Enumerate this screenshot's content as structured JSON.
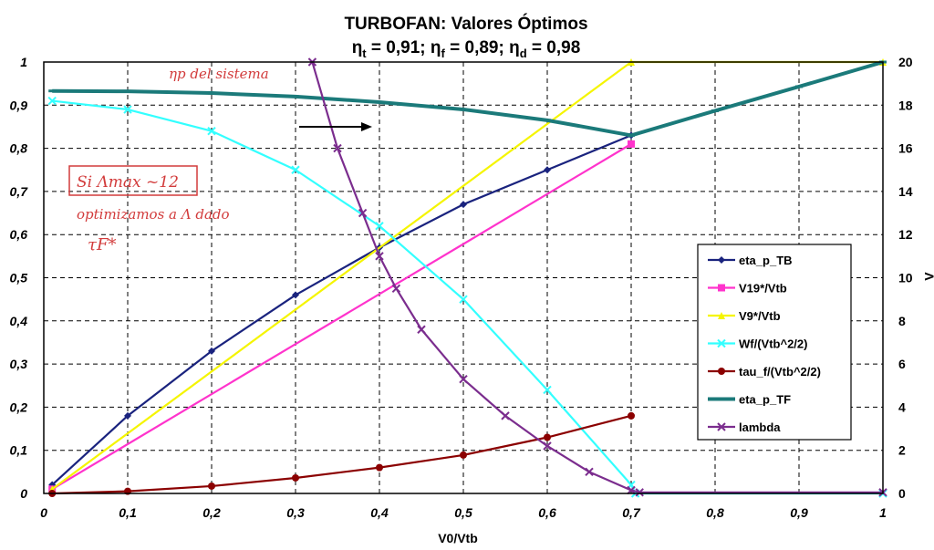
{
  "chart_data": {
    "type": "line",
    "title": "TURBOFAN: Valores Óptimos",
    "subtitle_parts": {
      "eta_t": "η",
      "eta_t_sub": "t",
      "eta_t_val": " = 0,91; ",
      "eta_f": "η",
      "eta_f_sub": "f",
      "eta_f_val": " = 0,89; ",
      "eta_d": "η",
      "eta_d_sub": "d",
      "eta_d_val": " = 0,98"
    },
    "xlabel": "V0/Vtb",
    "ylabel_right": "Λ",
    "xlim": [
      0,
      1
    ],
    "ylim_left": [
      0,
      1
    ],
    "ylim_right": [
      0,
      20
    ],
    "grid": true,
    "legend_position": "right",
    "x_ticks": [
      "0",
      "0,1",
      "0,2",
      "0,3",
      "0,4",
      "0,5",
      "0,6",
      "0,7",
      "0,8",
      "0,9",
      "1"
    ],
    "y_ticks_left": [
      "0",
      "0,1",
      "0,2",
      "0,3",
      "0,4",
      "0,5",
      "0,6",
      "0,7",
      "0,8",
      "0,9",
      "1"
    ],
    "y_ticks_right": [
      "0",
      "2",
      "4",
      "6",
      "8",
      "10",
      "12",
      "14",
      "16",
      "18",
      "20"
    ],
    "series": [
      {
        "name": "eta_p_TB",
        "color": "#1a237e",
        "marker": "diamond",
        "axis": "left",
        "x": [
          0.01,
          0.1,
          0.2,
          0.3,
          0.4,
          0.5,
          0.6,
          0.7
        ],
        "y": [
          0.02,
          0.18,
          0.33,
          0.46,
          0.57,
          0.67,
          0.75,
          0.83
        ]
      },
      {
        "name": "V19*/Vtb",
        "color": "#ff33cc",
        "marker": "square",
        "axis": "left",
        "x": [
          0.01,
          0.7
        ],
        "y": [
          0.01,
          0.81
        ]
      },
      {
        "name": "V9*/Vtb",
        "color": "#f5f500",
        "marker": "triangle",
        "axis": "left",
        "x": [
          0.01,
          0.7,
          1.0
        ],
        "y": [
          0.01,
          1.0,
          1.0
        ]
      },
      {
        "name": "Wf/(Vtb^2/2)",
        "color": "#33ffff",
        "marker": "x",
        "axis": "left",
        "x": [
          0.01,
          0.1,
          0.2,
          0.3,
          0.4,
          0.5,
          0.6,
          0.7,
          0.705,
          1.0
        ],
        "y": [
          0.91,
          0.89,
          0.84,
          0.75,
          0.62,
          0.45,
          0.24,
          0.02,
          0.0,
          0.0
        ]
      },
      {
        "name": "tau_f/(Vtb^2/2)",
        "color": "#8b0000",
        "marker": "circle",
        "axis": "left",
        "x": [
          0.01,
          0.1,
          0.2,
          0.3,
          0.4,
          0.5,
          0.6,
          0.7
        ],
        "y": [
          0.0,
          0.005,
          0.017,
          0.036,
          0.06,
          0.089,
          0.13,
          0.18
        ]
      },
      {
        "name": "eta_p_TF",
        "color": "#1b7a7a",
        "marker": "line",
        "axis": "left",
        "x": [
          0.01,
          0.1,
          0.2,
          0.3,
          0.4,
          0.5,
          0.6,
          0.7,
          0.8,
          0.9,
          1.0
        ],
        "y": [
          0.933,
          0.932,
          0.928,
          0.92,
          0.907,
          0.89,
          0.865,
          0.83,
          0.887,
          0.943,
          1.0
        ]
      },
      {
        "name": "lambda",
        "color": "#7b2d8e",
        "marker": "x",
        "axis": "right",
        "x": [
          0.32,
          0.35,
          0.38,
          0.4,
          0.42,
          0.45,
          0.5,
          0.55,
          0.6,
          0.65,
          0.7,
          0.71,
          1.0
        ],
        "y": [
          20.0,
          16.0,
          13.0,
          11.0,
          9.5,
          7.6,
          5.3,
          3.6,
          2.2,
          1.0,
          0.15,
          0.05,
          0.05
        ]
      }
    ]
  },
  "annotations": {
    "top_note": "ηp del sistema",
    "box_note": "Si Λmax ~12",
    "line2": "optimizamos a Λ dado",
    "line3": "τF*"
  }
}
